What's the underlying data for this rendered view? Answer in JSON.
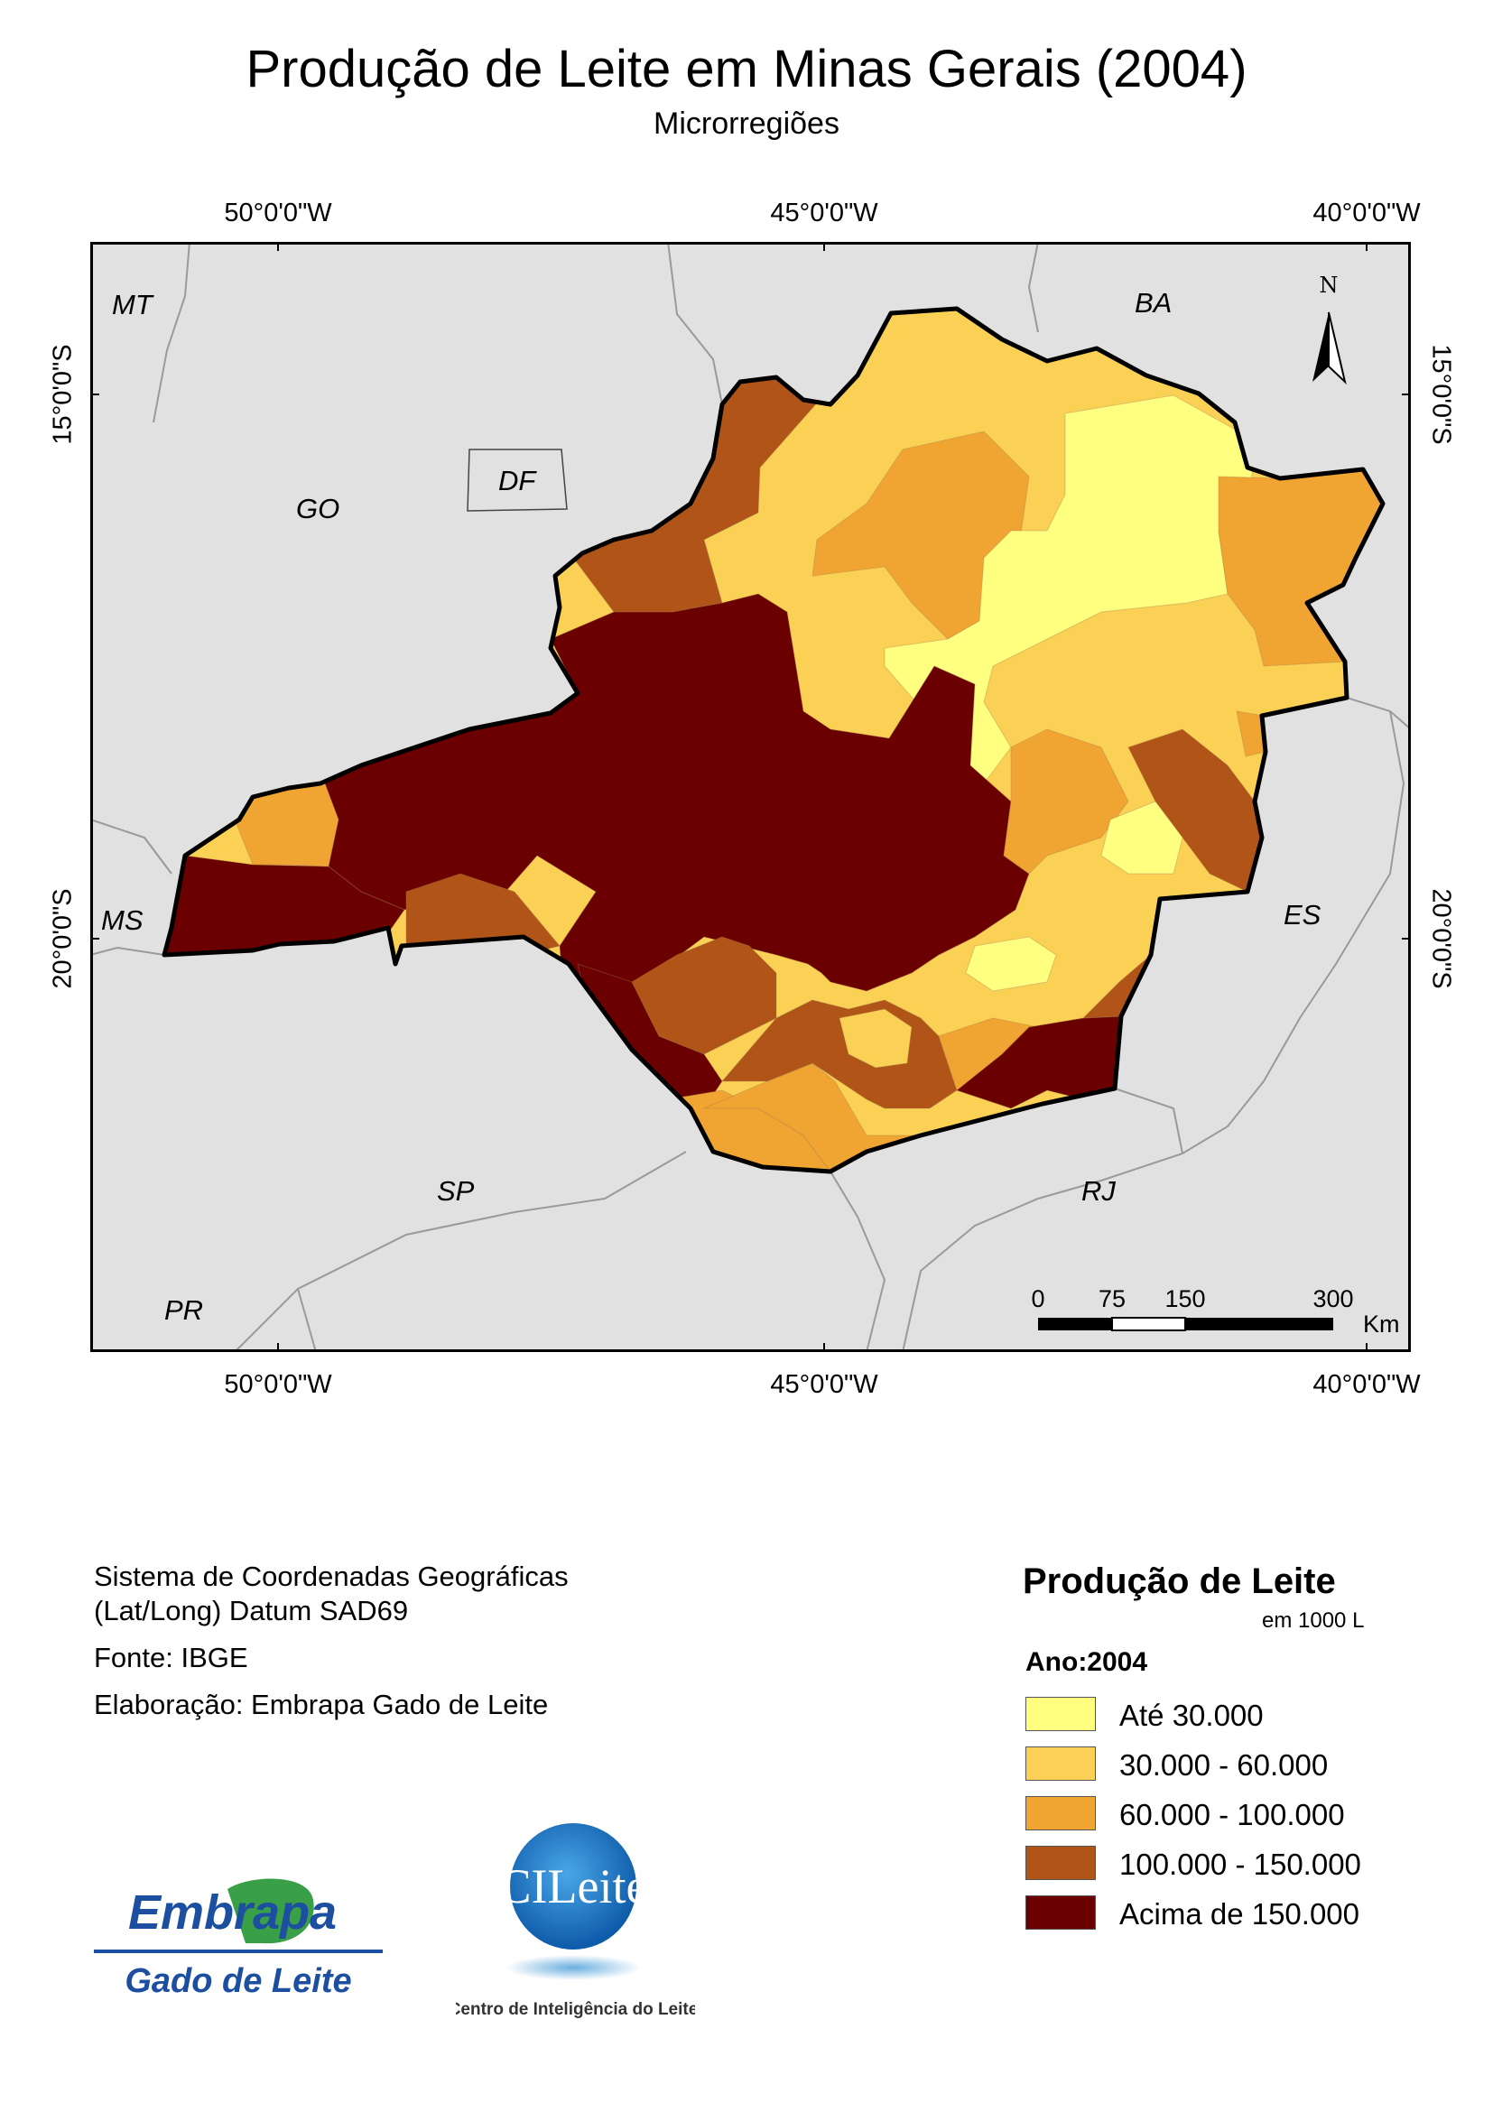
{
  "title": "Produção de Leite em Minas Gerais (2004)",
  "subtitle": "Microrregiões",
  "graticule": {
    "top": [
      "50°0'0\"W",
      "45°0'0\"W",
      "40°0'0\"W"
    ],
    "bottom": [
      "50°0'0\"W",
      "45°0'0\"W",
      "40°0'0\"W"
    ],
    "left": [
      "15°0'0\"S",
      "20°0'0\"S"
    ],
    "right": [
      "15°0'0\"S",
      "20°0'0\"S"
    ]
  },
  "map": {
    "background_color": "#e1e1e1",
    "state_labels": [
      "MT",
      "BA",
      "GO",
      "DF",
      "MS",
      "ES",
      "SP",
      "RJ",
      "PR"
    ],
    "north_arrow": "N",
    "scale_bar": {
      "ticks": [
        "0",
        "75",
        "150",
        "300"
      ],
      "unit": "Km"
    }
  },
  "info": {
    "crs_line1": "Sistema de Coordenadas Geográficas",
    "crs_line2": "(Lat/Long) Datum SAD69",
    "source": "Fonte: IBGE",
    "author": "Elaboração: Embrapa Gado de Leite"
  },
  "legend": {
    "title": "Produção de Leite",
    "unit": "em 1000 L",
    "year": "Ano:2004",
    "items": [
      {
        "label": "Até 30.000",
        "color": "#ffff80"
      },
      {
        "label": "30.000 - 60.000",
        "color": "#fad155"
      },
      {
        "label": "60.000 - 100.000",
        "color": "#f0a431"
      },
      {
        "label": "100.000 - 150.000",
        "color": "#b05418"
      },
      {
        "label": "Acima de 150.000",
        "color": "#6b0000"
      }
    ]
  },
  "logos": {
    "embrapa_word": "Embrapa",
    "embrapa_unit": "Gado de Leite",
    "cileite_word": "CILeite",
    "cileite_caption": "Centro de Inteligência do Leite"
  }
}
